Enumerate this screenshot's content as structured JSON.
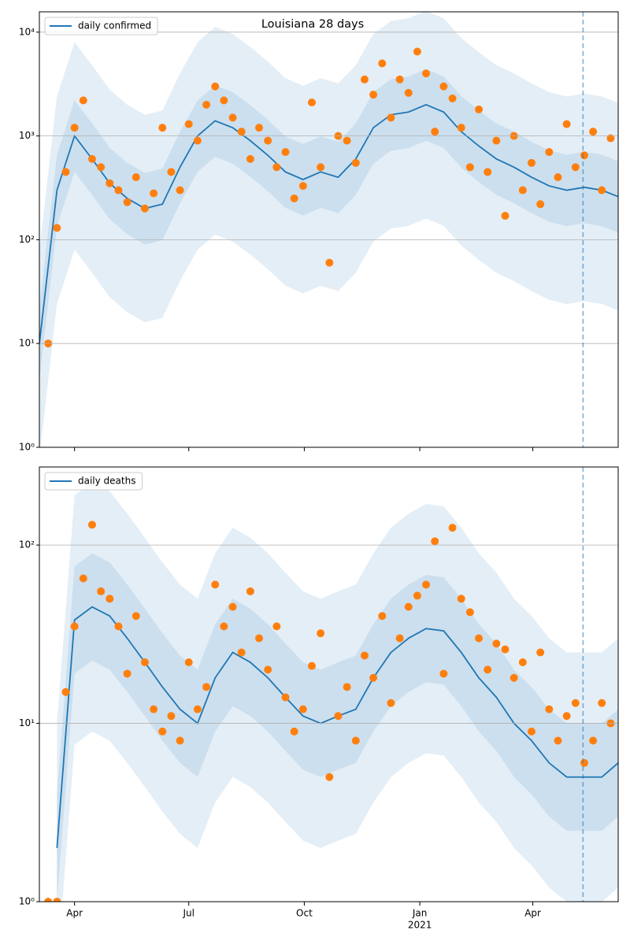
{
  "chart_data": [
    {
      "type": "line",
      "title": "Louisiana 28 days",
      "x": [
        0,
        14,
        28,
        42,
        56,
        70,
        84,
        98,
        112,
        126,
        140,
        154,
        168,
        182,
        196,
        210,
        224,
        238,
        252,
        266,
        280,
        294,
        308,
        322,
        336,
        350,
        364,
        378,
        392,
        406,
        420,
        434,
        448,
        461
      ],
      "series": [
        {
          "name": "daily confirmed",
          "color": "#1f77b4",
          "values": [
            10,
            300,
            1000,
            600,
            350,
            250,
            200,
            220,
            500,
            1000,
            1400,
            1200,
            900,
            650,
            450,
            380,
            450,
            400,
            600,
            1200,
            1600,
            1700,
            2000,
            1700,
            1100,
            800,
            600,
            500,
            400,
            330,
            300,
            320,
            300,
            260
          ]
        }
      ],
      "bands": [
        {
          "lower": [
            0.8,
            24,
            80,
            48,
            28,
            20,
            16,
            17.6,
            40,
            80,
            112,
            96,
            72,
            52,
            36,
            30.4,
            36,
            32,
            48,
            96,
            128,
            136,
            160,
            136,
            88,
            64,
            48,
            40,
            32,
            26.4,
            24,
            25.6,
            24,
            20.8
          ],
          "upper": [
            80,
            2400,
            8000,
            4800,
            2800,
            2000,
            1600,
            1760,
            4000,
            8000,
            11200,
            9600,
            7200,
            5200,
            3600,
            3040,
            3600,
            3200,
            4800,
            9600,
            12800,
            13600,
            16000,
            13600,
            8800,
            6400,
            4800,
            4000,
            3200,
            2640,
            2400,
            2560,
            2400,
            2080
          ]
        },
        {
          "lower": [
            4.5,
            135,
            450,
            270,
            158,
            113,
            90,
            99,
            225,
            450,
            630,
            540,
            405,
            293,
            203,
            171,
            203,
            180,
            270,
            540,
            720,
            765,
            900,
            765,
            495,
            360,
            270,
            225,
            180,
            149,
            135,
            144,
            135,
            117
          ],
          "upper": [
            22,
            660,
            2200,
            1320,
            770,
            550,
            440,
            484,
            1100,
            2200,
            3080,
            2640,
            1980,
            1430,
            990,
            836,
            990,
            880,
            1320,
            2640,
            3520,
            3740,
            4400,
            3740,
            2420,
            1760,
            1320,
            1100,
            880,
            726,
            660,
            704,
            660,
            572
          ]
        }
      ],
      "band_color": "#1f77b4",
      "points": {
        "color": "#ff7f0e",
        "x": [
          7,
          14,
          21,
          28,
          35,
          42,
          49,
          56,
          63,
          70,
          77,
          84,
          91,
          98,
          105,
          112,
          119,
          126,
          133,
          140,
          147,
          154,
          161,
          168,
          175,
          182,
          189,
          196,
          203,
          210,
          217,
          224,
          231,
          238,
          245,
          252,
          259,
          266,
          273,
          280,
          287,
          294,
          301,
          308,
          315,
          322,
          329,
          336,
          343,
          350,
          357,
          364,
          371,
          378,
          385,
          392,
          399,
          406,
          413,
          420,
          427,
          434,
          441,
          448,
          455
        ],
        "values": [
          10,
          130,
          450,
          1200,
          2200,
          600,
          500,
          350,
          300,
          230,
          400,
          200,
          280,
          1200,
          450,
          300,
          1300,
          900,
          2000,
          3000,
          2200,
          1500,
          1100,
          600,
          1200,
          900,
          500,
          700,
          250,
          330,
          2100,
          500,
          60,
          1000,
          900,
          550,
          3500,
          2500,
          5000,
          1500,
          3500,
          2600,
          6500,
          4000,
          1100,
          3000,
          2300,
          1200,
          500,
          1800,
          450,
          900,
          170,
          1000,
          300,
          550,
          220,
          700,
          400,
          1300,
          500,
          650,
          1100,
          300,
          950
        ]
      },
      "xlim": [
        0,
        461
      ],
      "xticks": [
        {
          "value": 28,
          "label": "Apr"
        },
        {
          "value": 119,
          "label": "Jul"
        },
        {
          "value": 211,
          "label": "Oct"
        },
        {
          "value": 303,
          "label": "Jan"
        },
        {
          "value": 393,
          "label": "Apr"
        }
      ],
      "ylim": [
        1,
        15700
      ],
      "log_scale": true,
      "yticks": [
        {
          "value": 1,
          "label": "10⁰"
        },
        {
          "value": 10,
          "label": "10¹"
        },
        {
          "value": 100,
          "label": "10²"
        },
        {
          "value": 1000,
          "label": "10³"
        },
        {
          "value": 10000,
          "label": "10⁴"
        }
      ],
      "grid": true,
      "legend": "upper left",
      "vline": 433
    },
    {
      "type": "line",
      "x": [
        0,
        14,
        28,
        42,
        56,
        70,
        84,
        98,
        112,
        126,
        140,
        154,
        168,
        182,
        196,
        210,
        224,
        238,
        252,
        266,
        280,
        294,
        308,
        322,
        336,
        350,
        364,
        378,
        392,
        406,
        420,
        434,
        448,
        461
      ],
      "series": [
        {
          "name": "daily deaths",
          "color": "#1f77b4",
          "values": [
            null,
            2,
            38,
            45,
            40,
            30,
            22,
            16,
            12,
            10,
            18,
            25,
            22,
            18,
            14,
            11,
            10,
            11,
            12,
            18,
            25,
            30,
            34,
            33,
            25,
            18,
            14,
            10,
            8,
            6,
            5,
            5,
            5,
            6
          ]
        }
      ],
      "bands": [
        {
          "lower": [
            null,
            0.4,
            7.6,
            9,
            8,
            6,
            4.4,
            3.2,
            2.4,
            2,
            3.6,
            5,
            4.4,
            3.6,
            2.8,
            2.2,
            2,
            2.2,
            2.4,
            3.6,
            5,
            6,
            6.8,
            6.6,
            5,
            3.6,
            2.8,
            2,
            1.6,
            1.2,
            1,
            1,
            1,
            1.2
          ],
          "upper": [
            null,
            10,
            190,
            225,
            200,
            150,
            110,
            80,
            60,
            50,
            90,
            125,
            110,
            90,
            70,
            55,
            50,
            55,
            60,
            90,
            125,
            150,
            170,
            165,
            125,
            90,
            70,
            50,
            40,
            30,
            25,
            25,
            25,
            30
          ]
        },
        {
          "lower": [
            null,
            1,
            19,
            22.5,
            20,
            15,
            11,
            8,
            6,
            5,
            9,
            12.5,
            11,
            9,
            7,
            5.5,
            5,
            5.5,
            6,
            9,
            12.5,
            15,
            17,
            16.5,
            12.5,
            9,
            7,
            5,
            4,
            3,
            2.5,
            2.5,
            2.5,
            3
          ],
          "upper": [
            null,
            4,
            76,
            90,
            80,
            60,
            44,
            32,
            24,
            20,
            36,
            50,
            44,
            36,
            28,
            22,
            20,
            22,
            24,
            36,
            50,
            60,
            68,
            66,
            50,
            36,
            28,
            20,
            16,
            12,
            10,
            10,
            10,
            12
          ]
        }
      ],
      "band_color": "#1f77b4",
      "points": {
        "color": "#ff7f0e",
        "x": [
          7,
          14,
          21,
          28,
          35,
          42,
          49,
          56,
          63,
          70,
          77,
          84,
          91,
          98,
          105,
          112,
          119,
          126,
          133,
          140,
          147,
          154,
          161,
          168,
          175,
          182,
          189,
          196,
          203,
          210,
          217,
          224,
          231,
          238,
          245,
          252,
          259,
          266,
          273,
          280,
          287,
          294,
          301,
          308,
          315,
          322,
          329,
          336,
          343,
          350,
          357,
          364,
          371,
          378,
          385,
          392,
          399,
          406,
          413,
          420,
          427,
          434,
          441,
          448,
          455
        ],
        "values": [
          1,
          1,
          15,
          35,
          65,
          130,
          55,
          50,
          35,
          19,
          40,
          22,
          12,
          9,
          11,
          8,
          22,
          12,
          16,
          60,
          35,
          45,
          25,
          55,
          30,
          20,
          35,
          14,
          9,
          12,
          21,
          32,
          5,
          11,
          16,
          8,
          24,
          18,
          40,
          13,
          30,
          45,
          52,
          60,
          105,
          19,
          125,
          50,
          42,
          30,
          20,
          28,
          26,
          18,
          22,
          9,
          25,
          12,
          8,
          11,
          13,
          6,
          8,
          13,
          10
        ]
      },
      "xlim": [
        0,
        461
      ],
      "xticks": [
        {
          "value": 28,
          "label": "Apr"
        },
        {
          "value": 119,
          "label": "Jul"
        },
        {
          "value": 211,
          "label": "Oct"
        },
        {
          "value": 303,
          "label": "Jan"
        },
        {
          "value": 393,
          "label": "Apr"
        }
      ],
      "xtick_sublabel": {
        "value": 303,
        "label": "2021"
      },
      "ylim": [
        1,
        274
      ],
      "log_scale": true,
      "yticks": [
        {
          "value": 1,
          "label": "10⁰"
        },
        {
          "value": 10,
          "label": "10¹"
        },
        {
          "value": 100,
          "label": "10²"
        }
      ],
      "grid": true,
      "legend": "upper left",
      "vline": 433
    }
  ]
}
